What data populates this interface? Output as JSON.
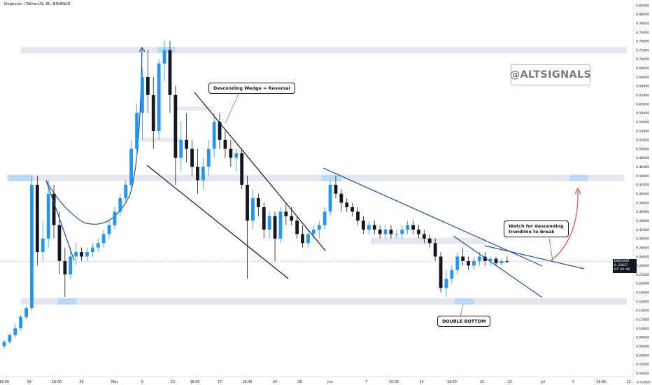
{
  "header": {
    "title": "Dogecoin / TetherUS, 8h, BINANCE"
  },
  "watermark": {
    "text": "@ALTSIGNALS"
  },
  "annotations": {
    "wedge": "Descending Wedge = Reversal",
    "trend_line1": "Watch for descending",
    "trend_line2": "trendline to break",
    "double_bottom": "DOUBLE BOTTOM"
  },
  "price_tag": {
    "symbol": "DOGEUSDT",
    "price": "0.24837",
    "countdown": "07:49:48"
  },
  "colors": {
    "up": "#2196f3",
    "down": "#131722",
    "zone": "#e0e3eb",
    "zone_highlight": "#bbd9f7",
    "wedge_line": "#131722",
    "trend_line": "#1e4f9c",
    "projection": "#e53935",
    "curve": "#1e4f9c"
  },
  "chart_data": {
    "type": "candlestick",
    "title": "Dogecoin / TetherUS, 8h, BINANCE",
    "y_axis": {
      "ticks": [
        "0.82000",
        "0.80000",
        "0.78000",
        "0.76000",
        "0.74000",
        "0.72000",
        "0.70000",
        "0.68000",
        "0.66000",
        "0.64000",
        "0.62000",
        "0.60000",
        "0.58000",
        "0.56000",
        "0.54000",
        "0.52000",
        "0.50000",
        "0.48000",
        "0.46000",
        "0.44000",
        "0.42000",
        "0.40000",
        "0.38000",
        "0.36000",
        "0.34000",
        "0.32000",
        "0.30000",
        "0.28000",
        "0.26000",
        "0.24000",
        "0.22000",
        "0.20000",
        "0.18000",
        "0.16000",
        "0.14000",
        "0.12000",
        "0.10000",
        "0.08000",
        "0.06000",
        "0.04000",
        "0.02000",
        "0.00000",
        "-0.02000"
      ],
      "range": [
        -0.02,
        0.82
      ]
    },
    "x_axis": {
      "ticks": [
        "16:00",
        "19",
        "16:00",
        "26",
        "May",
        "5",
        "10",
        "16:00",
        "17",
        "16:00",
        "24",
        "28",
        "Jun",
        "7",
        "16:00",
        "14",
        "16:00",
        "21",
        "25",
        "Jul",
        "5",
        "16:00",
        "12",
        "16:00"
      ],
      "tick_index": [
        0.5,
        5,
        10,
        14.5,
        20.5,
        25.5,
        31,
        35,
        39.5,
        44.5,
        49.5,
        54,
        59.5,
        66,
        71,
        76,
        81.5,
        87,
        92,
        98,
        103.5,
        108.5,
        113.5,
        119
      ]
    },
    "last_price": 0.24837,
    "candles": [
      [
        0.06,
        0.075,
        0.055,
        0.07
      ],
      [
        0.07,
        0.09,
        0.065,
        0.085
      ],
      [
        0.085,
        0.11,
        0.08,
        0.1
      ],
      [
        0.1,
        0.13,
        0.095,
        0.125
      ],
      [
        0.125,
        0.15,
        0.12,
        0.145
      ],
      [
        0.145,
        0.44,
        0.14,
        0.42
      ],
      [
        0.42,
        0.44,
        0.24,
        0.27
      ],
      [
        0.27,
        0.34,
        0.25,
        0.3
      ],
      [
        0.3,
        0.43,
        0.28,
        0.4
      ],
      [
        0.4,
        0.42,
        0.3,
        0.33
      ],
      [
        0.33,
        0.36,
        0.22,
        0.25
      ],
      [
        0.25,
        0.28,
        0.17,
        0.22
      ],
      [
        0.22,
        0.28,
        0.21,
        0.26
      ],
      [
        0.26,
        0.29,
        0.24,
        0.27
      ],
      [
        0.27,
        0.28,
        0.25,
        0.26
      ],
      [
        0.26,
        0.28,
        0.25,
        0.27
      ],
      [
        0.27,
        0.29,
        0.26,
        0.28
      ],
      [
        0.28,
        0.3,
        0.27,
        0.29
      ],
      [
        0.29,
        0.32,
        0.28,
        0.31
      ],
      [
        0.31,
        0.34,
        0.3,
        0.33
      ],
      [
        0.33,
        0.37,
        0.32,
        0.36
      ],
      [
        0.36,
        0.4,
        0.35,
        0.39
      ],
      [
        0.39,
        0.43,
        0.38,
        0.42
      ],
      [
        0.42,
        0.52,
        0.41,
        0.5
      ],
      [
        0.5,
        0.6,
        0.48,
        0.58
      ],
      [
        0.58,
        0.68,
        0.52,
        0.66
      ],
      [
        0.66,
        0.72,
        0.58,
        0.62
      ],
      [
        0.62,
        0.66,
        0.5,
        0.54
      ],
      [
        0.54,
        0.7,
        0.52,
        0.69
      ],
      [
        0.69,
        0.74,
        0.65,
        0.72
      ],
      [
        0.72,
        0.74,
        0.58,
        0.62
      ],
      [
        0.62,
        0.64,
        0.42,
        0.48
      ],
      [
        0.48,
        0.56,
        0.45,
        0.52
      ],
      [
        0.52,
        0.58,
        0.47,
        0.5
      ],
      [
        0.5,
        0.52,
        0.44,
        0.46
      ],
      [
        0.46,
        0.5,
        0.4,
        0.43
      ],
      [
        0.43,
        0.48,
        0.41,
        0.46
      ],
      [
        0.46,
        0.52,
        0.44,
        0.5
      ],
      [
        0.5,
        0.58,
        0.48,
        0.56
      ],
      [
        0.56,
        0.58,
        0.5,
        0.52
      ],
      [
        0.52,
        0.54,
        0.48,
        0.5
      ],
      [
        0.5,
        0.52,
        0.46,
        0.48
      ],
      [
        0.48,
        0.5,
        0.45,
        0.49
      ],
      [
        0.49,
        0.5,
        0.41,
        0.42
      ],
      [
        0.42,
        0.44,
        0.21,
        0.34
      ],
      [
        0.34,
        0.41,
        0.32,
        0.39
      ],
      [
        0.39,
        0.4,
        0.35,
        0.37
      ],
      [
        0.37,
        0.38,
        0.3,
        0.32
      ],
      [
        0.32,
        0.36,
        0.3,
        0.35
      ],
      [
        0.35,
        0.36,
        0.25,
        0.3
      ],
      [
        0.3,
        0.37,
        0.29,
        0.36
      ],
      [
        0.36,
        0.38,
        0.33,
        0.35
      ],
      [
        0.35,
        0.37,
        0.33,
        0.34
      ],
      [
        0.34,
        0.35,
        0.3,
        0.31
      ],
      [
        0.31,
        0.33,
        0.28,
        0.29
      ],
      [
        0.29,
        0.32,
        0.28,
        0.31
      ],
      [
        0.31,
        0.33,
        0.3,
        0.32
      ],
      [
        0.32,
        0.34,
        0.3,
        0.33
      ],
      [
        0.33,
        0.37,
        0.32,
        0.36
      ],
      [
        0.36,
        0.43,
        0.35,
        0.42
      ],
      [
        0.42,
        0.44,
        0.39,
        0.4
      ],
      [
        0.4,
        0.41,
        0.36,
        0.38
      ],
      [
        0.38,
        0.39,
        0.36,
        0.37
      ],
      [
        0.37,
        0.38,
        0.35,
        0.36
      ],
      [
        0.36,
        0.37,
        0.33,
        0.34
      ],
      [
        0.34,
        0.35,
        0.31,
        0.32
      ],
      [
        0.32,
        0.34,
        0.31,
        0.33
      ],
      [
        0.33,
        0.34,
        0.31,
        0.32
      ],
      [
        0.32,
        0.33,
        0.3,
        0.31
      ],
      [
        0.31,
        0.33,
        0.3,
        0.32
      ],
      [
        0.32,
        0.33,
        0.3,
        0.31
      ],
      [
        0.31,
        0.32,
        0.3,
        0.31
      ],
      [
        0.31,
        0.33,
        0.3,
        0.32
      ],
      [
        0.32,
        0.34,
        0.31,
        0.33
      ],
      [
        0.33,
        0.34,
        0.31,
        0.32
      ],
      [
        0.32,
        0.33,
        0.3,
        0.31
      ],
      [
        0.31,
        0.32,
        0.29,
        0.3
      ],
      [
        0.3,
        0.31,
        0.28,
        0.29
      ],
      [
        0.29,
        0.3,
        0.25,
        0.26
      ],
      [
        0.26,
        0.27,
        0.18,
        0.19
      ],
      [
        0.19,
        0.23,
        0.17,
        0.21
      ],
      [
        0.21,
        0.24,
        0.2,
        0.23
      ],
      [
        0.23,
        0.27,
        0.22,
        0.26
      ],
      [
        0.26,
        0.28,
        0.24,
        0.25
      ],
      [
        0.25,
        0.26,
        0.23,
        0.24
      ],
      [
        0.24,
        0.26,
        0.23,
        0.25
      ],
      [
        0.25,
        0.27,
        0.24,
        0.26
      ],
      [
        0.26,
        0.27,
        0.24,
        0.25
      ],
      [
        0.25,
        0.26,
        0.24,
        0.255
      ],
      [
        0.255,
        0.26,
        0.24,
        0.245
      ],
      [
        0.245,
        0.255,
        0.24,
        0.25
      ],
      [
        0.25,
        0.26,
        0.245,
        0.248
      ]
    ],
    "zones": [
      {
        "y": 0.72,
        "label": "resistance"
      },
      {
        "y": 0.435,
        "label": "resistance"
      },
      {
        "y": 0.295,
        "label": "support"
      },
      {
        "y": 0.16,
        "label": "support"
      }
    ]
  }
}
